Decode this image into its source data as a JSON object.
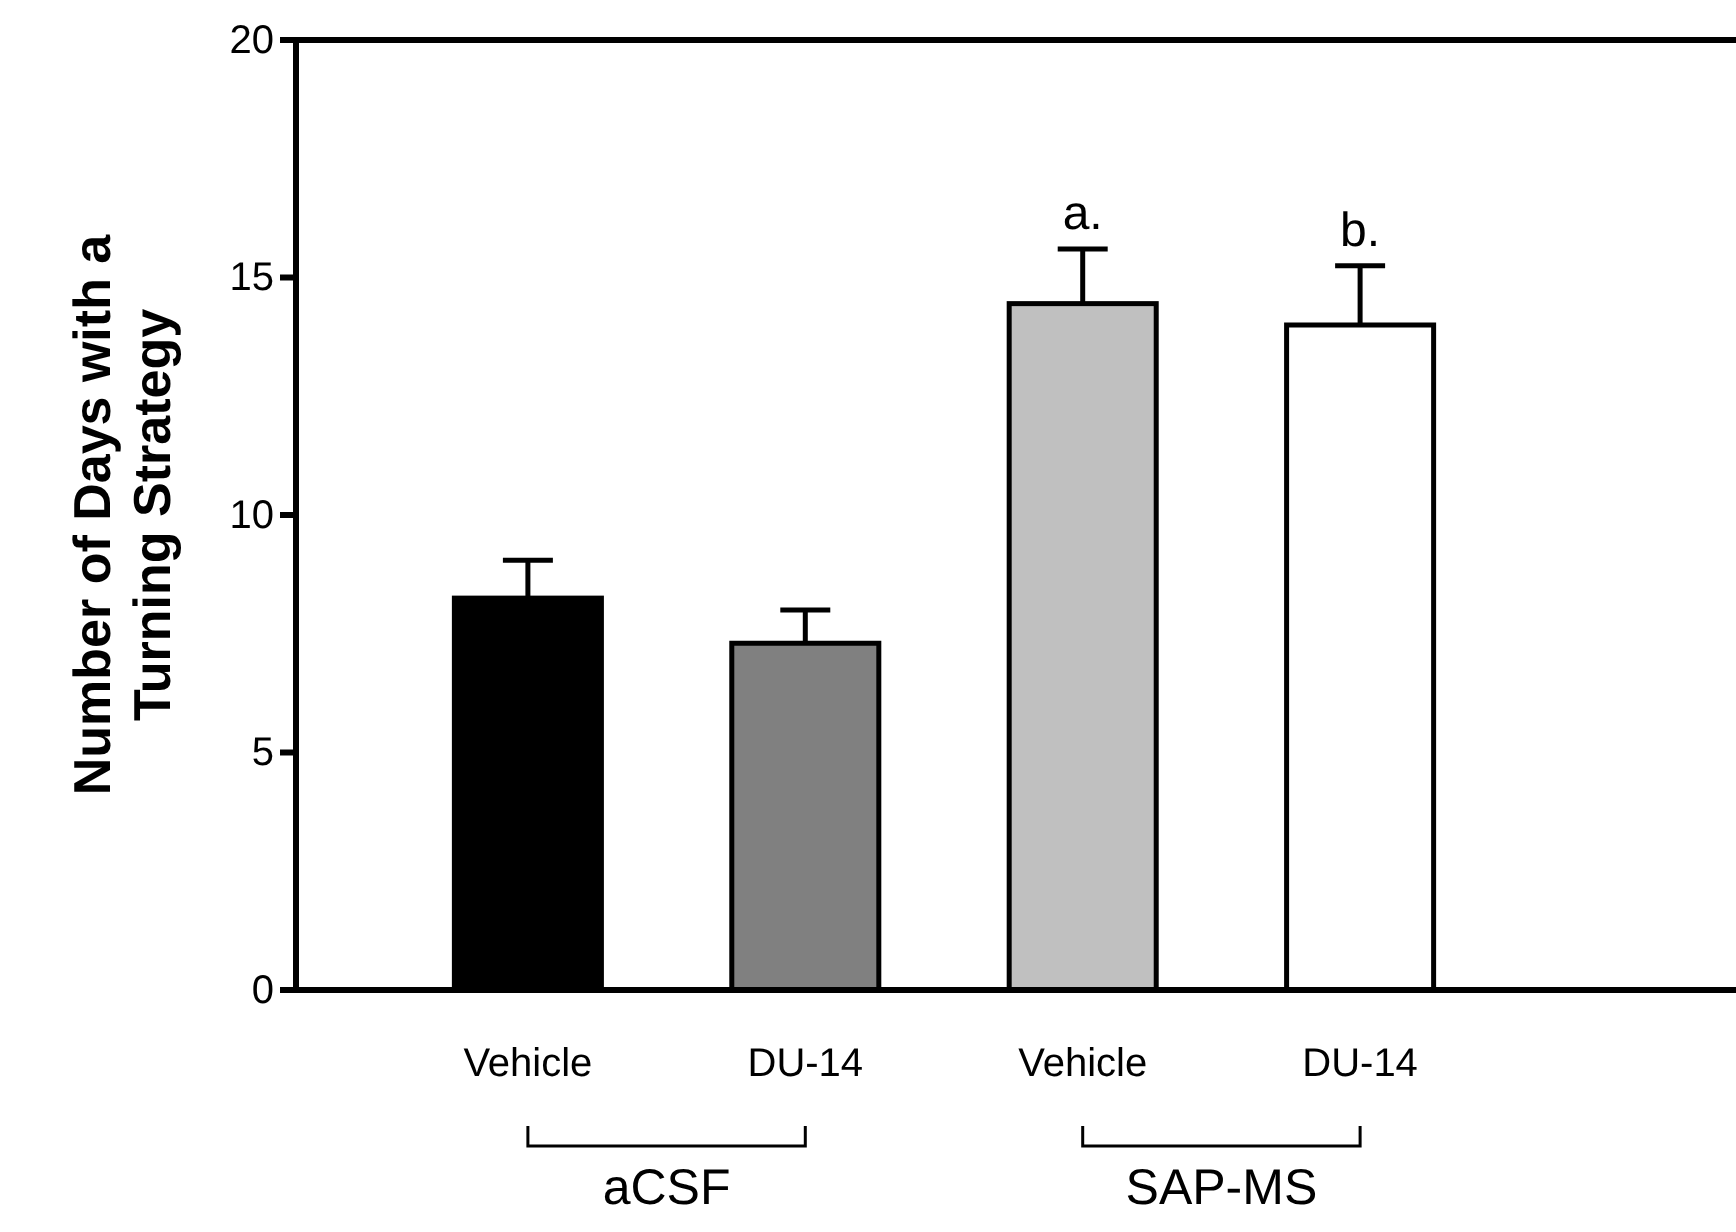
{
  "chart_data": {
    "type": "bar",
    "ylabel": "Number of Days with a Turning Strategy",
    "categories": [
      "Vehicle",
      "DU-14",
      "Vehicle",
      "DU-14"
    ],
    "values": [
      8.25,
      7.3,
      14.45,
      14.0
    ],
    "colors": [
      "#000000",
      "#808080",
      "#c0c0c0",
      "#ffffff"
    ],
    "errors": [
      [
        8.25,
        9.05
      ],
      [
        7.3,
        8.0
      ],
      [
        14.45,
        15.6
      ],
      [
        14.0,
        15.25
      ]
    ],
    "ylim": [
      0,
      20
    ],
    "yticks": [
      0,
      5,
      10,
      15,
      20
    ],
    "grid": false,
    "annotations": [
      {
        "text": "a.",
        "y": 15.6
      },
      {
        "text": "b.",
        "y": 15.25
      },
      "aCSF",
      "SAP-MS"
    ]
  }
}
